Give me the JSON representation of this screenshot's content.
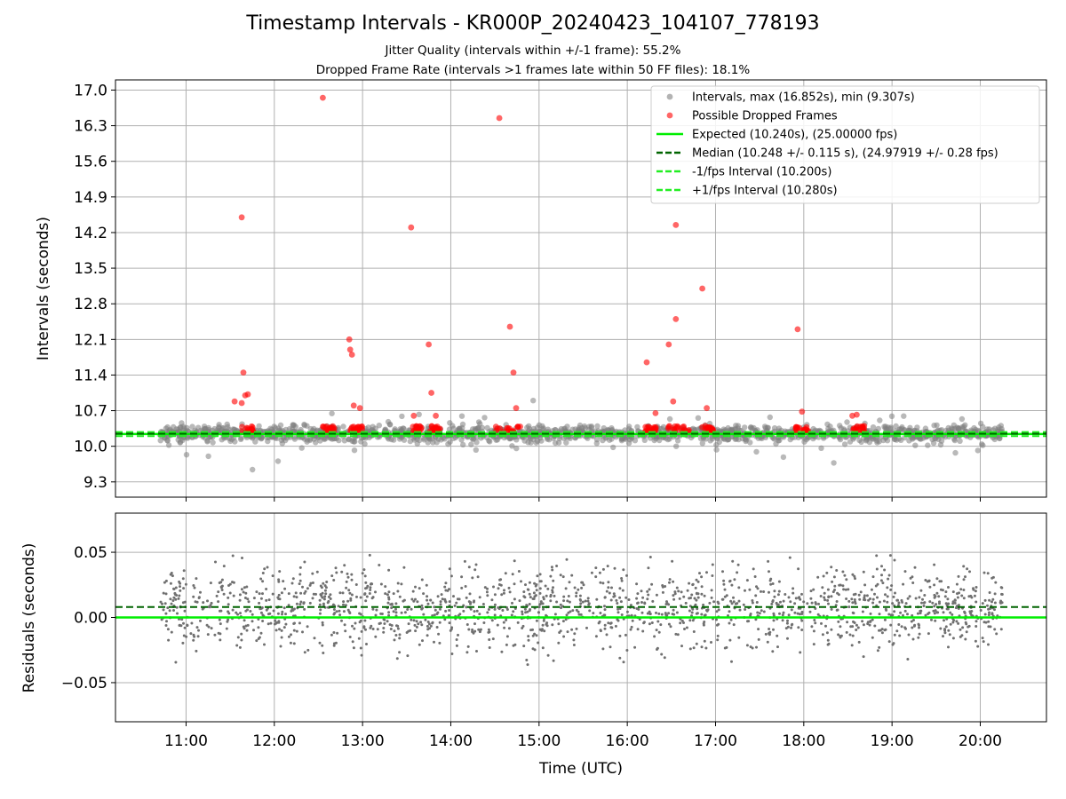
{
  "header": {
    "title": "Timestamp Intervals - KR000P_20240423_104107_778193",
    "subtitle_1": "Jitter Quality (intervals within +/-1 frame): 55.2%",
    "subtitle_2": "Dropped Frame Rate (intervals >1 frames late within 50 FF files): 18.1%"
  },
  "chart_data": [
    {
      "type": "scatter",
      "panel": "intervals",
      "ylabel": "Intervals (seconds)",
      "xlabel": "",
      "ylim": [
        9.0,
        17.2
      ],
      "yticks": [
        "17.0",
        "16.3",
        "15.6",
        "14.9",
        "14.2",
        "13.5",
        "12.8",
        "12.1",
        "11.4",
        "10.7",
        "10.0",
        "9.3"
      ],
      "ytick_values": [
        17.0,
        16.3,
        15.6,
        14.9,
        14.2,
        13.5,
        12.8,
        12.1,
        11.4,
        10.7,
        10.0,
        9.3
      ],
      "xlim_hours": [
        10.2,
        20.75
      ],
      "grid": true,
      "legend_position": "top-right",
      "legend": [
        {
          "label": "Intervals, max (16.852s), min (9.307s)",
          "kind": "marker",
          "color": "#808080"
        },
        {
          "label": "Possible Dropped Frames",
          "kind": "marker",
          "color": "#ff0000"
        },
        {
          "label": "Expected (10.240s), (25.00000 fps)",
          "kind": "solid",
          "color": "#00ee00"
        },
        {
          "label": "Median (10.248 +/- 0.115 s), (24.97919 +/- 0.28 fps)",
          "kind": "dashed",
          "color": "#006400"
        },
        {
          "label": "-1/fps Interval (10.200s)",
          "kind": "dashed",
          "color": "#22ee22"
        },
        {
          "label": "+1/fps Interval (10.280s)",
          "kind": "dashed",
          "color": "#22ee22"
        }
      ],
      "reference_lines": {
        "expected": 10.24,
        "median": 10.248,
        "minus_1fps": 10.2,
        "plus_1fps": 10.28
      },
      "stats": {
        "max": 16.852,
        "min": 9.307,
        "time_start_hours": 10.7,
        "time_end_hours": 20.25,
        "spread_sigma": 0.2
      },
      "dropped_points": [
        {
          "x": 11.63,
          "y": 14.5
        },
        {
          "x": 11.65,
          "y": 11.45
        },
        {
          "x": 11.67,
          "y": 11.0
        },
        {
          "x": 11.7,
          "y": 11.02
        },
        {
          "x": 11.55,
          "y": 10.88
        },
        {
          "x": 11.63,
          "y": 10.85
        },
        {
          "x": 12.55,
          "y": 16.85
        },
        {
          "x": 12.85,
          "y": 12.1
        },
        {
          "x": 12.86,
          "y": 11.9
        },
        {
          "x": 12.88,
          "y": 11.8
        },
        {
          "x": 12.9,
          "y": 10.8
        },
        {
          "x": 12.97,
          "y": 10.75
        },
        {
          "x": 13.55,
          "y": 14.3
        },
        {
          "x": 13.58,
          "y": 10.6
        },
        {
          "x": 13.75,
          "y": 12.0
        },
        {
          "x": 13.78,
          "y": 11.05
        },
        {
          "x": 13.83,
          "y": 10.6
        },
        {
          "x": 14.55,
          "y": 16.45
        },
        {
          "x": 14.67,
          "y": 12.35
        },
        {
          "x": 14.71,
          "y": 11.45
        },
        {
          "x": 14.74,
          "y": 10.75
        },
        {
          "x": 16.22,
          "y": 11.65
        },
        {
          "x": 16.47,
          "y": 12.0
        },
        {
          "x": 16.55,
          "y": 12.5
        },
        {
          "x": 16.55,
          "y": 14.35
        },
        {
          "x": 16.52,
          "y": 10.88
        },
        {
          "x": 16.32,
          "y": 10.65
        },
        {
          "x": 16.85,
          "y": 13.1
        },
        {
          "x": 16.9,
          "y": 10.75
        },
        {
          "x": 17.93,
          "y": 12.3
        },
        {
          "x": 17.98,
          "y": 10.68
        },
        {
          "x": 18.55,
          "y": 10.6
        },
        {
          "x": 18.6,
          "y": 10.62
        }
      ],
      "dropped_clusters": [
        {
          "center": 11.7,
          "half_width": 0.07
        },
        {
          "center": 12.62,
          "half_width": 0.07
        },
        {
          "center": 12.93,
          "half_width": 0.07
        },
        {
          "center": 13.62,
          "half_width": 0.07
        },
        {
          "center": 13.82,
          "half_width": 0.06
        },
        {
          "center": 14.65,
          "half_width": 0.14
        },
        {
          "center": 16.27,
          "half_width": 0.07
        },
        {
          "center": 16.58,
          "half_width": 0.12
        },
        {
          "center": 16.92,
          "half_width": 0.07
        },
        {
          "center": 17.98,
          "half_width": 0.07
        },
        {
          "center": 18.62,
          "half_width": 0.07
        }
      ]
    },
    {
      "type": "scatter",
      "panel": "residuals",
      "ylabel": "Residuals (seconds)",
      "xlabel": "Time (UTC)",
      "ylim": [
        -0.08,
        0.08
      ],
      "yticks": [
        "0.05",
        "0.00",
        "−0.05"
      ],
      "ytick_values": [
        0.05,
        0.0,
        -0.05
      ],
      "xticks": [
        "11:00",
        "12:00",
        "13:00",
        "14:00",
        "15:00",
        "16:00",
        "17:00",
        "18:00",
        "19:00",
        "20:00"
      ],
      "xtick_hours": [
        11,
        12,
        13,
        14,
        15,
        16,
        17,
        18,
        19,
        20
      ],
      "xlim_hours": [
        10.2,
        20.75
      ],
      "grid": true,
      "reference_lines": {
        "zero": 0.0,
        "median_offset": 0.008
      },
      "stats": {
        "time_start_hours": 10.7,
        "time_end_hours": 20.25,
        "spread_sigma": 0.04
      },
      "colors": {
        "points": "#707070",
        "zero_line": "#00ee00",
        "median_line": "#006400"
      }
    }
  ]
}
